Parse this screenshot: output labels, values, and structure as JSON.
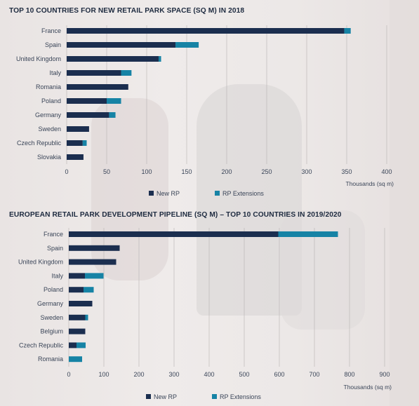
{
  "chart_data": [
    {
      "type": "bar",
      "orientation": "horizontal",
      "stacked": true,
      "title": "TOP 10 COUNTRIES FOR NEW RETAIL PARK SPACE (SQ M) IN 2018",
      "xlabel": "Thousands (sq m)",
      "ylabel": "",
      "categories": [
        "France",
        "Spain",
        "United Kingdom",
        "Italy",
        "Romania",
        "Poland",
        "Germany",
        "Sweden",
        "Czech Republic",
        "Slovakia"
      ],
      "series": [
        {
          "name": "New RP",
          "color": "#1b2e4f",
          "values": [
            347,
            136,
            115,
            68,
            77,
            50,
            53,
            28,
            20,
            21
          ]
        },
        {
          "name": "RP Extensions",
          "color": "#1683a5",
          "values": [
            8,
            29,
            3,
            13,
            0,
            18,
            8,
            0,
            5,
            0
          ]
        }
      ],
      "xlim": [
        0,
        400
      ],
      "ticks": [
        0,
        50,
        100,
        150,
        200,
        250,
        300,
        350,
        400
      ],
      "grid": true,
      "legend_position": "bottom"
    },
    {
      "type": "bar",
      "orientation": "horizontal",
      "stacked": true,
      "title": "EUROPEAN RETAIL PARK DEVELOPMENT PIPELINE (SQ M) – TOP 10 COUNTRIES IN 2019/2020",
      "xlabel": "Thousands (sq m)",
      "ylabel": "",
      "categories": [
        "France",
        "Spain",
        "United Kingdom",
        "Italy",
        "Poland",
        "Germany",
        "Sweden",
        "Belgium",
        "Czech Republic",
        "Romania"
      ],
      "series": [
        {
          "name": "New RP",
          "color": "#1b2e4f",
          "values": [
            597,
            145,
            135,
            46,
            42,
            67,
            47,
            47,
            22,
            0
          ]
        },
        {
          "name": "RP Extensions",
          "color": "#1683a5",
          "values": [
            170,
            0,
            0,
            53,
            29,
            0,
            8,
            0,
            26,
            38
          ]
        }
      ],
      "xlim": [
        0,
        900
      ],
      "ticks": [
        0,
        100,
        200,
        300,
        400,
        500,
        600,
        700,
        800,
        900
      ],
      "grid": true,
      "legend_position": "bottom"
    }
  ]
}
